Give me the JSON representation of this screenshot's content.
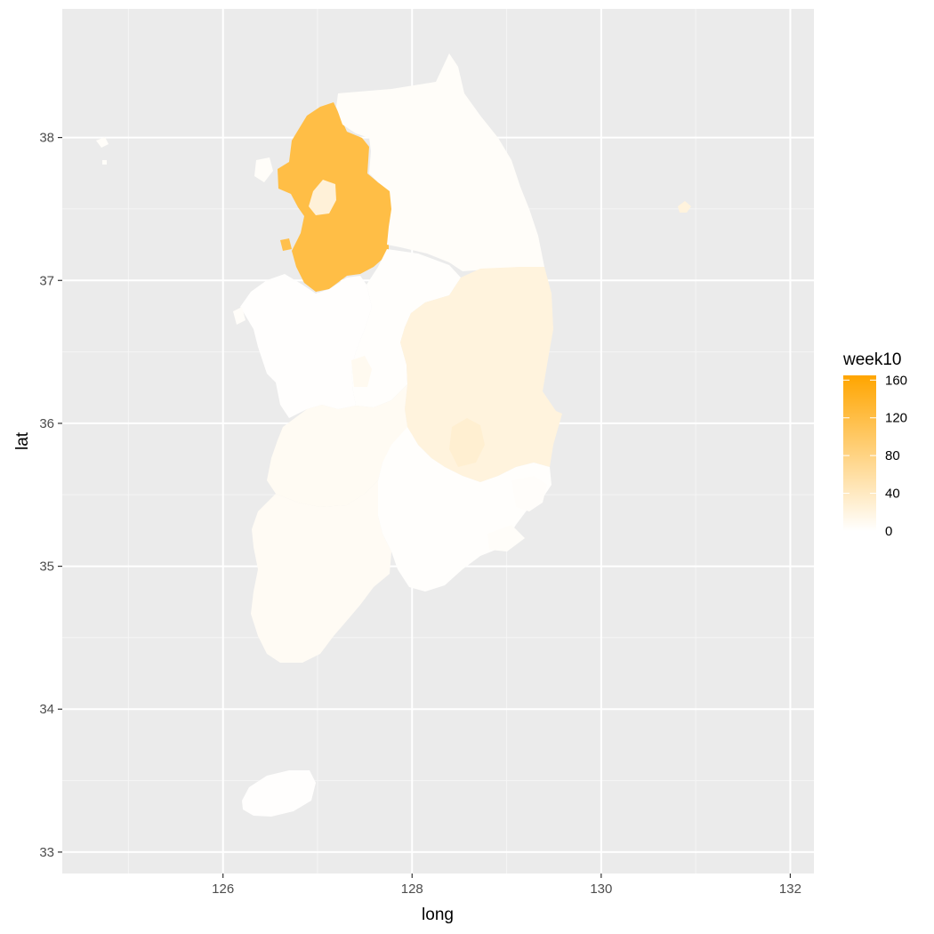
{
  "chart_data": {
    "type": "choropleth",
    "xlabel": "long",
    "ylabel": "lat",
    "xlim": [
      124.3,
      132.25
    ],
    "ylim": [
      32.85,
      38.9
    ],
    "x_ticks": [
      126,
      128,
      130,
      132
    ],
    "y_ticks": [
      33,
      34,
      35,
      36,
      37,
      38
    ],
    "grid": true,
    "legend": {
      "title": "week10",
      "position": "right",
      "breaks": [
        0,
        40,
        80,
        120,
        160
      ],
      "limits": [
        0,
        165
      ],
      "low_color": "#ffffff",
      "high_color": "#ffa500"
    },
    "colors": {
      "panel_bg": "#ebebeb",
      "grid_major": "#ffffff",
      "grid_minor": "#f5f5f5"
    },
    "regions": [
      {
        "id": "gyeonggi",
        "value": 120
      },
      {
        "id": "seoul",
        "value": 25
      },
      {
        "id": "incheon",
        "value": 115
      },
      {
        "id": "gangwon",
        "value": 4
      },
      {
        "id": "chungbuk",
        "value": 2
      },
      {
        "id": "chungnam",
        "value": 1
      },
      {
        "id": "sejong",
        "value": 10
      },
      {
        "id": "daejeon",
        "value": 8
      },
      {
        "id": "gyeongbuk",
        "value": 22
      },
      {
        "id": "daegu",
        "value": 30
      },
      {
        "id": "jeonbuk",
        "value": 8
      },
      {
        "id": "gwangju",
        "value": 6
      },
      {
        "id": "jeonnam",
        "value": 7
      },
      {
        "id": "gyeongnam",
        "value": 2
      },
      {
        "id": "busan",
        "value": 4
      },
      {
        "id": "ulsan",
        "value": 3
      },
      {
        "id": "jeju",
        "value": 1
      },
      {
        "id": "ulleung",
        "value": 22
      },
      {
        "id": "islands-west",
        "value": 4
      }
    ]
  }
}
